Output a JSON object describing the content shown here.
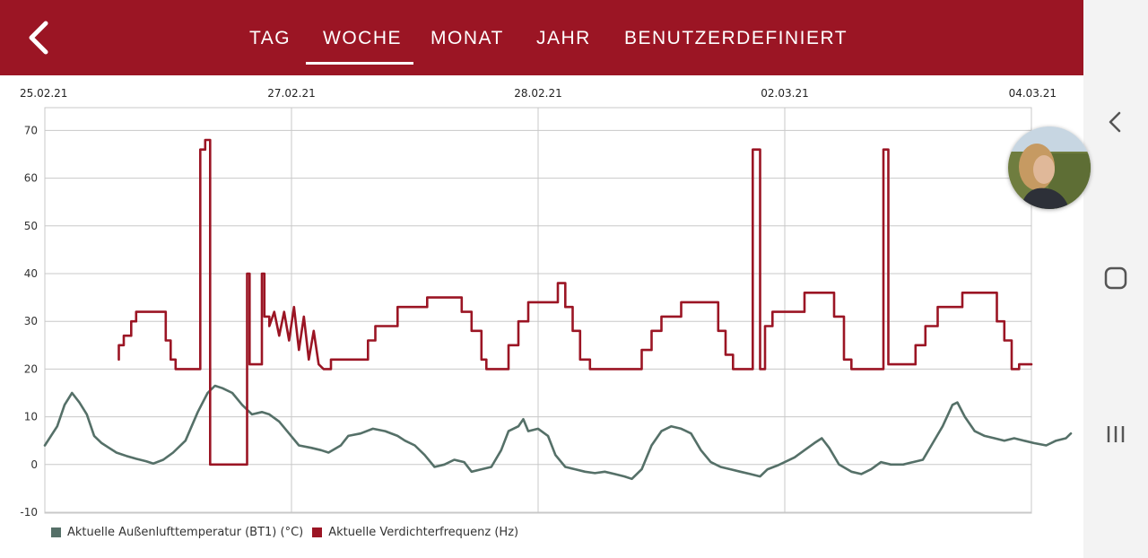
{
  "header": {
    "tabs": [
      {
        "label": "TAG",
        "active": false
      },
      {
        "label": "WOCHE",
        "active": true
      },
      {
        "label": "MONAT",
        "active": false
      },
      {
        "label": "JAHR",
        "active": false
      },
      {
        "label": "BENUTZERDEFINIERT",
        "active": false
      }
    ],
    "back_icon": "chevron-left-icon",
    "accent": "#9b1524"
  },
  "system_nav": {
    "icons": [
      "chevron-left-icon",
      "home-square-icon",
      "recent-apps-icon"
    ]
  },
  "chart_data": {
    "type": "line",
    "x_range": [
      "25.02.21",
      "04.03.21"
    ],
    "x_tick_labels": [
      "25.02.21",
      "27.02.21",
      "28.02.21",
      "02.03.21",
      "04.03.21"
    ],
    "y_ticks": [
      70,
      60,
      50,
      40,
      30,
      20,
      10,
      0,
      -10
    ],
    "ylim": [
      -10,
      75
    ],
    "grid": true,
    "legend_position": "bottom-left",
    "series": [
      {
        "name": "Aktuelle Außenlufttemperatur (BT1) (°C)",
        "color": "#557068",
        "points": [
          [
            0,
            4
          ],
          [
            0.05,
            8
          ],
          [
            0.08,
            12.5
          ],
          [
            0.11,
            15
          ],
          [
            0.14,
            13
          ],
          [
            0.17,
            10.5
          ],
          [
            0.2,
            6
          ],
          [
            0.23,
            4.5
          ],
          [
            0.26,
            3.5
          ],
          [
            0.29,
            2.5
          ],
          [
            0.33,
            1.8
          ],
          [
            0.37,
            1.2
          ],
          [
            0.41,
            0.7
          ],
          [
            0.44,
            0.2
          ],
          [
            0.48,
            1
          ],
          [
            0.52,
            2.5
          ],
          [
            0.57,
            5
          ],
          [
            0.62,
            11
          ],
          [
            0.66,
            15
          ],
          [
            0.69,
            16.5
          ],
          [
            0.72,
            16
          ],
          [
            0.76,
            15
          ],
          [
            0.8,
            12.5
          ],
          [
            0.84,
            10.5
          ],
          [
            0.88,
            11
          ],
          [
            0.91,
            10.5
          ],
          [
            0.95,
            9
          ],
          [
            0.99,
            6.5
          ],
          [
            1.03,
            4
          ],
          [
            1.08,
            3.5
          ],
          [
            1.12,
            3
          ],
          [
            1.15,
            2.5
          ],
          [
            1.2,
            4
          ],
          [
            1.23,
            6
          ],
          [
            1.28,
            6.5
          ],
          [
            1.33,
            7.5
          ],
          [
            1.38,
            7
          ],
          [
            1.43,
            6
          ],
          [
            1.46,
            5
          ],
          [
            1.5,
            4
          ],
          [
            1.54,
            2
          ],
          [
            1.58,
            -0.5
          ],
          [
            1.62,
            0
          ],
          [
            1.66,
            1
          ],
          [
            1.7,
            0.5
          ],
          [
            1.73,
            -1.5
          ],
          [
            1.77,
            -1
          ],
          [
            1.81,
            -0.5
          ],
          [
            1.85,
            3
          ],
          [
            1.88,
            7
          ],
          [
            1.92,
            8
          ],
          [
            1.94,
            9.5
          ],
          [
            1.96,
            7
          ],
          [
            2.0,
            7.5
          ],
          [
            2.04,
            6
          ],
          [
            2.07,
            2
          ],
          [
            2.11,
            -0.5
          ],
          [
            2.15,
            -1
          ],
          [
            2.19,
            -1.5
          ],
          [
            2.23,
            -1.8
          ],
          [
            2.27,
            -1.5
          ],
          [
            2.31,
            -2
          ],
          [
            2.35,
            -2.5
          ],
          [
            2.38,
            -3
          ],
          [
            2.42,
            -1
          ],
          [
            2.46,
            4
          ],
          [
            2.5,
            7
          ],
          [
            2.54,
            8
          ],
          [
            2.58,
            7.5
          ],
          [
            2.62,
            6.5
          ],
          [
            2.66,
            3
          ],
          [
            2.7,
            0.5
          ],
          [
            2.74,
            -0.5
          ],
          [
            2.78,
            -1
          ],
          [
            2.82,
            -1.5
          ],
          [
            2.86,
            -2
          ],
          [
            2.9,
            -2.5
          ],
          [
            2.93,
            -1
          ],
          [
            2.97,
            -0.2
          ],
          [
            3.0,
            0.5
          ],
          [
            3.04,
            1.5
          ],
          [
            3.08,
            3
          ],
          [
            3.12,
            4.5
          ],
          [
            3.15,
            5.5
          ],
          [
            3.18,
            3.5
          ],
          [
            3.22,
            0
          ],
          [
            3.27,
            -1.5
          ],
          [
            3.31,
            -2
          ],
          [
            3.35,
            -1
          ],
          [
            3.39,
            0.5
          ],
          [
            3.43,
            0
          ],
          [
            3.48,
            0
          ],
          [
            3.52,
            0.5
          ],
          [
            3.56,
            1
          ],
          [
            3.6,
            4.5
          ],
          [
            3.64,
            8
          ],
          [
            3.68,
            12.5
          ],
          [
            3.7,
            13
          ],
          [
            3.73,
            10
          ],
          [
            3.77,
            7
          ],
          [
            3.81,
            6
          ],
          [
            3.85,
            5.5
          ],
          [
            3.89,
            5
          ],
          [
            3.93,
            5.5
          ],
          [
            3.97,
            5
          ],
          [
            4.01,
            4.5
          ],
          [
            4.06,
            4
          ],
          [
            4.1,
            5
          ],
          [
            4.14,
            5.5
          ],
          [
            4.16,
            6.5
          ]
        ]
      },
      {
        "name": "Aktuelle Verdichterfrequenz (Hz)",
        "color": "#9b1524",
        "points": [
          [
            0.3,
            22
          ],
          [
            0.3,
            25
          ],
          [
            0.32,
            25
          ],
          [
            0.32,
            27
          ],
          [
            0.35,
            27
          ],
          [
            0.35,
            30
          ],
          [
            0.37,
            30
          ],
          [
            0.37,
            32
          ],
          [
            0.49,
            32
          ],
          [
            0.49,
            26
          ],
          [
            0.51,
            26
          ],
          [
            0.51,
            22
          ],
          [
            0.53,
            22
          ],
          [
            0.53,
            20
          ],
          [
            0.63,
            20
          ],
          [
            0.63,
            66
          ],
          [
            0.65,
            66
          ],
          [
            0.65,
            68
          ],
          [
            0.67,
            68
          ],
          [
            0.67,
            0
          ],
          [
            0.82,
            0
          ],
          [
            0.82,
            40
          ],
          [
            0.83,
            40
          ],
          [
            0.83,
            21
          ],
          [
            0.88,
            21
          ],
          [
            0.88,
            40
          ],
          [
            0.89,
            40
          ],
          [
            0.89,
            31
          ],
          [
            0.91,
            31
          ],
          [
            0.91,
            29
          ],
          [
            0.93,
            32
          ],
          [
            0.95,
            27
          ],
          [
            0.97,
            32
          ],
          [
            0.99,
            26
          ],
          [
            1.01,
            33
          ],
          [
            1.03,
            24
          ],
          [
            1.05,
            31
          ],
          [
            1.07,
            22
          ],
          [
            1.09,
            28
          ],
          [
            1.11,
            21
          ],
          [
            1.13,
            20
          ],
          [
            1.16,
            20
          ],
          [
            1.16,
            22
          ],
          [
            1.31,
            22
          ],
          [
            1.31,
            26
          ],
          [
            1.34,
            26
          ],
          [
            1.34,
            29
          ],
          [
            1.43,
            29
          ],
          [
            1.43,
            33
          ],
          [
            1.55,
            33
          ],
          [
            1.55,
            35
          ],
          [
            1.69,
            35
          ],
          [
            1.69,
            32
          ],
          [
            1.73,
            32
          ],
          [
            1.73,
            28
          ],
          [
            1.77,
            28
          ],
          [
            1.77,
            22
          ],
          [
            1.79,
            22
          ],
          [
            1.79,
            20
          ],
          [
            1.88,
            20
          ],
          [
            1.88,
            25
          ],
          [
            1.92,
            25
          ],
          [
            1.92,
            30
          ],
          [
            1.96,
            30
          ],
          [
            1.96,
            34
          ],
          [
            2.08,
            34
          ],
          [
            2.08,
            38
          ],
          [
            2.11,
            38
          ],
          [
            2.11,
            33
          ],
          [
            2.14,
            33
          ],
          [
            2.14,
            28
          ],
          [
            2.17,
            28
          ],
          [
            2.17,
            22
          ],
          [
            2.21,
            22
          ],
          [
            2.21,
            20
          ],
          [
            2.42,
            20
          ],
          [
            2.42,
            24
          ],
          [
            2.46,
            24
          ],
          [
            2.46,
            28
          ],
          [
            2.5,
            28
          ],
          [
            2.5,
            31
          ],
          [
            2.58,
            31
          ],
          [
            2.58,
            34
          ],
          [
            2.73,
            34
          ],
          [
            2.73,
            28
          ],
          [
            2.76,
            28
          ],
          [
            2.76,
            23
          ],
          [
            2.79,
            23
          ],
          [
            2.79,
            20
          ],
          [
            2.87,
            20
          ],
          [
            2.87,
            66
          ],
          [
            2.9,
            66
          ],
          [
            2.9,
            20
          ],
          [
            2.92,
            20
          ],
          [
            2.92,
            29
          ],
          [
            2.95,
            29
          ],
          [
            2.95,
            32
          ],
          [
            3.08,
            32
          ],
          [
            3.08,
            36
          ],
          [
            3.2,
            36
          ],
          [
            3.2,
            31
          ],
          [
            3.24,
            31
          ],
          [
            3.24,
            22
          ],
          [
            3.27,
            22
          ],
          [
            3.27,
            20
          ],
          [
            3.4,
            20
          ],
          [
            3.4,
            66
          ],
          [
            3.42,
            66
          ],
          [
            3.42,
            21
          ],
          [
            3.53,
            21
          ],
          [
            3.53,
            25
          ],
          [
            3.57,
            25
          ],
          [
            3.57,
            29
          ],
          [
            3.62,
            29
          ],
          [
            3.62,
            33
          ],
          [
            3.72,
            33
          ],
          [
            3.72,
            36
          ],
          [
            3.86,
            36
          ],
          [
            3.86,
            30
          ],
          [
            3.89,
            30
          ],
          [
            3.89,
            26
          ],
          [
            3.92,
            26
          ],
          [
            3.92,
            20
          ],
          [
            3.95,
            20
          ],
          [
            3.95,
            21
          ],
          [
            4.0,
            21
          ]
        ]
      }
    ]
  }
}
